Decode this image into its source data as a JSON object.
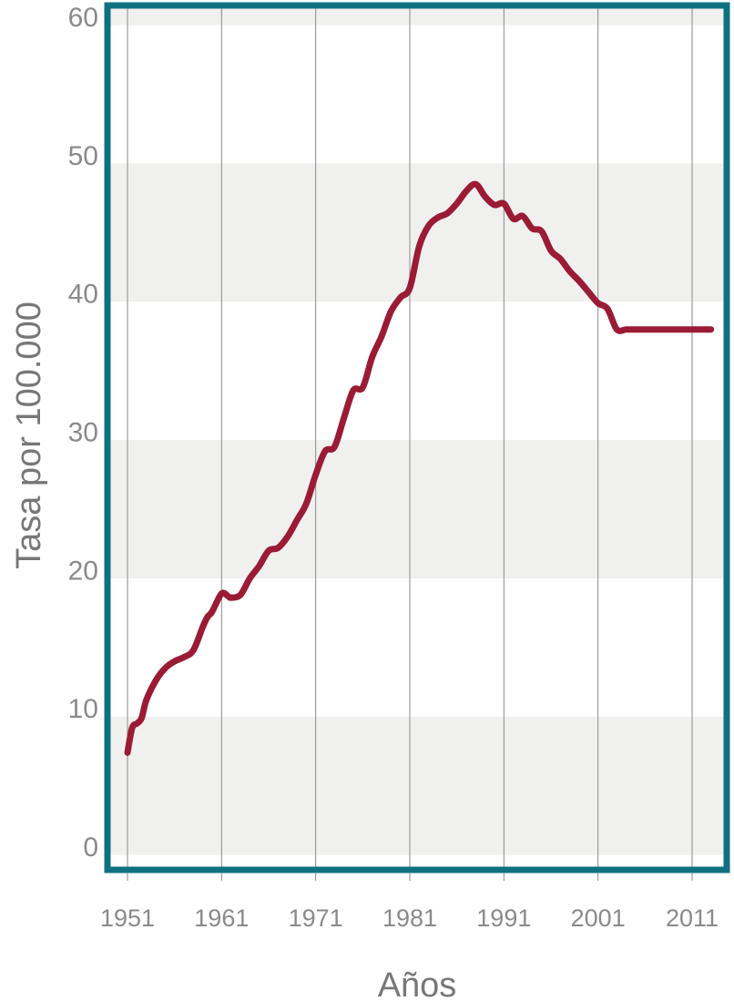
{
  "chart_data": {
    "type": "line",
    "title": "",
    "xlabel": "Años",
    "ylabel": "Tasa por 100.000",
    "xlim": [
      1951,
      2013
    ],
    "ylim": [
      0,
      60
    ],
    "x_ticks": [
      "1951",
      "1961",
      "1971",
      "1981",
      "1991",
      "2001",
      "2011"
    ],
    "y_ticks": [
      "0",
      "10",
      "20",
      "30",
      "40",
      "50",
      "60"
    ],
    "grid": true,
    "colors": {
      "line": "#9b1b34",
      "frame": "#0f7180",
      "band": "#f0f0ef",
      "gridline": "#8a8a8a",
      "tick_text": "#8a8a8a",
      "label_text": "#777777"
    },
    "series": [
      {
        "name": "",
        "x": [
          1951,
          1951.5,
          1952,
          1952.5,
          1953,
          1954,
          1955,
          1956,
          1957,
          1958,
          1959,
          1959.5,
          1960,
          1961,
          1961.7,
          1962,
          1963,
          1964,
          1965,
          1966,
          1967,
          1968,
          1969,
          1970,
          1971,
          1972,
          1973,
          1974,
          1975,
          1976,
          1977,
          1978,
          1979,
          1980,
          1981,
          1982,
          1983,
          1984,
          1985,
          1986,
          1987,
          1988,
          1989,
          1990,
          1991,
          1992,
          1993,
          1994,
          1995,
          1996,
          1997,
          1998,
          1999,
          2000,
          2001,
          2002,
          2003,
          2004,
          2005,
          2006,
          2007,
          2008,
          2009,
          2010,
          2011,
          2012,
          2013
        ],
        "values": [
          6.7,
          8.5,
          8.8,
          9.2,
          10.5,
          11.9,
          12.8,
          13.3,
          13.6,
          14.1,
          15.8,
          16.5,
          16.9,
          18.2,
          18.0,
          17.9,
          18.1,
          19.3,
          20.2,
          21.3,
          21.5,
          22.3,
          23.5,
          24.7,
          26.8,
          28.5,
          28.8,
          30.9,
          32.9,
          33.1,
          35.3,
          36.8,
          38.6,
          39.6,
          40.3,
          43.3,
          44.8,
          45.4,
          45.7,
          46.4,
          47.3,
          47.8,
          46.9,
          46.3,
          46.4,
          45.3,
          45.5,
          44.6,
          44.4,
          43.0,
          42.4,
          41.5,
          40.8,
          40.0,
          39.2,
          38.8,
          37.3,
          37.3,
          37.3,
          37.3,
          37.3,
          37.3,
          37.3,
          37.3,
          37.3,
          37.3,
          37.3
        ]
      }
    ]
  }
}
